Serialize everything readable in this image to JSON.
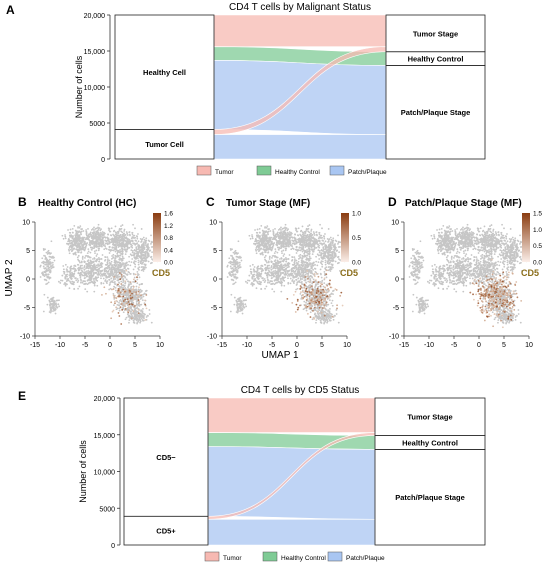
{
  "colors": {
    "tumor": "#f7b9b2",
    "healthy": "#7fcb95",
    "patch": "#a9c6f2",
    "grey_cells": "#c6c6c6",
    "cd5_low": "#f1dccb",
    "cd5_high": "#8a3c10"
  },
  "chart_data": [
    {
      "panel": "A",
      "type": "alluvial",
      "title": "CD4 T cells by Malignant Status",
      "ylabel": "Number of cells",
      "ylim": [
        0,
        20000
      ],
      "yticks": [
        0,
        5000,
        10000,
        15000,
        20000
      ],
      "ytick_labels": [
        "0",
        "5000",
        "10,000",
        "15,000",
        "20,000"
      ],
      "left_axis": [
        {
          "label": "Healthy Cell",
          "value": 15900
        },
        {
          "label": "Tumor Cell",
          "value": 4100
        }
      ],
      "right_axis": [
        {
          "label": "Patch/Plaque Stage",
          "value": 13000
        },
        {
          "label": "Healthy Control",
          "value": 1900
        },
        {
          "label": "Tumor Stage",
          "value": 5100
        }
      ],
      "flows": [
        {
          "from": "Healthy Cell",
          "to": "Tumor Stage",
          "value": 4400,
          "color": "tumor"
        },
        {
          "from": "Healthy Cell",
          "to": "Healthy Control",
          "value": 1900,
          "color": "healthy"
        },
        {
          "from": "Healthy Cell",
          "to": "Patch/Plaque Stage",
          "value": 9600,
          "color": "patch"
        },
        {
          "from": "Tumor Cell",
          "to": "Tumor Stage",
          "value": 700,
          "color": "tumor"
        },
        {
          "from": "Tumor Cell",
          "to": "Patch/Plaque Stage",
          "value": 3400,
          "color": "patch"
        }
      ],
      "legend": [
        "Tumor",
        "Healthy Control",
        "Patch/Plaque"
      ]
    },
    {
      "panel": "B",
      "type": "scatter",
      "title": "Healthy Control (HC)",
      "xlim": [
        -15,
        10
      ],
      "ylim": [
        -10,
        10
      ],
      "xticks": [
        -15,
        -10,
        -5,
        0,
        5,
        10
      ],
      "yticks": [
        -10,
        -5,
        0,
        5,
        10
      ],
      "colorbar": {
        "label": "CD5",
        "min": 0.0,
        "max": 1.6,
        "ticks": [
          "1.6",
          "1.2",
          "0.8",
          "0.4",
          "0.0"
        ]
      },
      "density": 0.3
    },
    {
      "panel": "C",
      "type": "scatter",
      "title": "Tumor Stage (MF)",
      "xlim": [
        -15,
        10
      ],
      "ylim": [
        -10,
        10
      ],
      "xticks": [
        -15,
        -10,
        -5,
        0,
        5,
        10
      ],
      "yticks": [
        -10,
        -5,
        0,
        5,
        10
      ],
      "colorbar": {
        "label": "CD5",
        "min": 0.0,
        "max": 1.0,
        "ticks": [
          "1.0",
          "0.5",
          "0.0"
        ]
      },
      "density": 0.45
    },
    {
      "panel": "D",
      "type": "scatter",
      "title": "Patch/Plaque Stage (MF)",
      "xlim": [
        -15,
        10
      ],
      "ylim": [
        -10,
        10
      ],
      "xticks": [
        -15,
        -10,
        -5,
        0,
        5,
        10
      ],
      "yticks": [
        -10,
        -5,
        0,
        5,
        10
      ],
      "colorbar": {
        "label": "CD5",
        "min": 0.0,
        "max": 1.5,
        "ticks": [
          "1.5",
          "1.0",
          "0.5",
          "0.0"
        ]
      },
      "density": 0.85
    },
    {
      "panel": "E",
      "type": "alluvial",
      "title": "CD4 T cells by CD5 Status",
      "ylabel": "Number of cells",
      "ylim": [
        0,
        20000
      ],
      "yticks": [
        0,
        5000,
        10000,
        15000,
        20000
      ],
      "ytick_labels": [
        "0",
        "5000",
        "10,000",
        "15,000",
        "20,000"
      ],
      "left_axis": [
        {
          "label": "CD5−",
          "value": 16100
        },
        {
          "label": "CD5+",
          "value": 3900
        }
      ],
      "right_axis": [
        {
          "label": "Patch/Plaque Stage",
          "value": 13000
        },
        {
          "label": "Healthy Control",
          "value": 1900
        },
        {
          "label": "Tumor Stage",
          "value": 5100
        }
      ],
      "flows": [
        {
          "from": "CD5−",
          "to": "Tumor Stage",
          "value": 4700,
          "color": "tumor"
        },
        {
          "from": "CD5−",
          "to": "Healthy Control",
          "value": 1900,
          "color": "healthy"
        },
        {
          "from": "CD5−",
          "to": "Patch/Plaque Stage",
          "value": 9500,
          "color": "patch"
        },
        {
          "from": "CD5+",
          "to": "Tumor Stage",
          "value": 400,
          "color": "tumor"
        },
        {
          "from": "CD5+",
          "to": "Patch/Plaque Stage",
          "value": 3500,
          "color": "patch"
        }
      ],
      "legend": [
        "Tumor",
        "Healthy Control",
        "Patch/Plaque"
      ]
    }
  ],
  "panel_letters": [
    "A",
    "B",
    "C",
    "D",
    "E"
  ],
  "umap": {
    "xlabel": "UMAP 1",
    "ylabel": "UMAP 2"
  }
}
